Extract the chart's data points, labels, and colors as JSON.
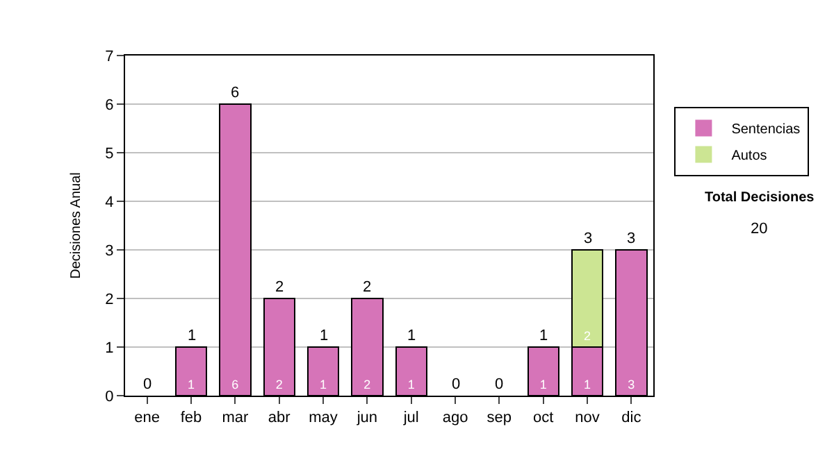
{
  "chart_data": {
    "type": "bar",
    "stacked": true,
    "ylabel": "Decisiones Anual",
    "categories": [
      "ene",
      "feb",
      "mar",
      "abr",
      "may",
      "jun",
      "jul",
      "ago",
      "sep",
      "oct",
      "nov",
      "dic"
    ],
    "series": [
      {
        "name": "Sentencias",
        "color": "#d674b8",
        "values": [
          0,
          1,
          6,
          2,
          1,
          2,
          1,
          0,
          0,
          1,
          1,
          3
        ],
        "value_labels": [
          null,
          "1",
          "6",
          "2",
          "1",
          "2",
          "1",
          null,
          null,
          "1",
          "1",
          "3"
        ]
      },
      {
        "name": "Autos",
        "color": "#cce593",
        "values": [
          0,
          0,
          0,
          0,
          0,
          0,
          0,
          0,
          0,
          0,
          2,
          0
        ],
        "value_labels": [
          null,
          null,
          null,
          null,
          null,
          null,
          null,
          null,
          null,
          null,
          "2",
          null
        ]
      }
    ],
    "totals": [
      "0",
      "1",
      "6",
      "2",
      "1",
      "2",
      "1",
      "0",
      "0",
      "1",
      "3",
      "3"
    ],
    "ylim": [
      0,
      7
    ],
    "yticks": [
      0,
      1,
      2,
      3,
      4,
      5,
      6,
      7
    ],
    "grid": "y",
    "legend": "right",
    "annotations": [
      "Total Decisiones",
      "20"
    ]
  }
}
